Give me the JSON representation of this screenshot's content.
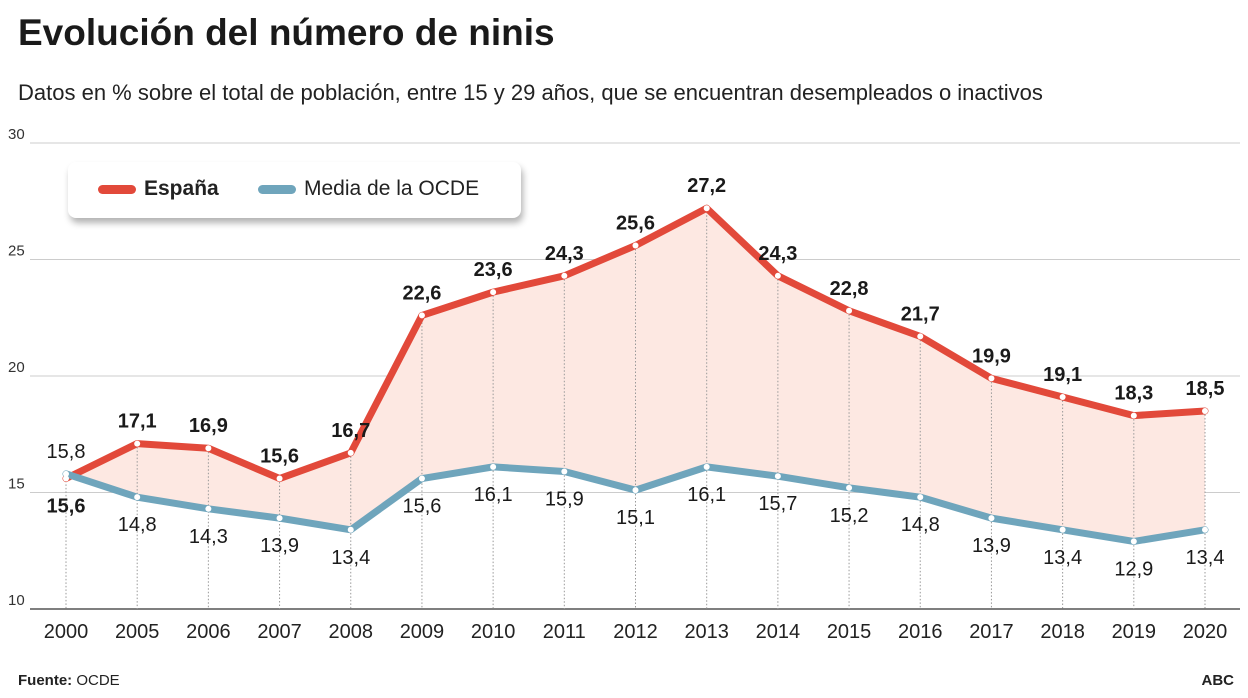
{
  "title": "Evolución del número de ninis",
  "subtitle": "Datos en % sobre el total de población, entre 15 y 29 años, que se encuentran desempleados o inactivos",
  "source_label": "Fuente:",
  "source": "OCDE",
  "brand": "ABC",
  "chart_data": {
    "type": "line",
    "title": "Evolución del número de ninis",
    "categories": [
      "2000",
      "2005",
      "2006",
      "2007",
      "2008",
      "2009",
      "2010",
      "2011",
      "2012",
      "2013",
      "2014",
      "2015",
      "2016",
      "2017",
      "2018",
      "2019",
      "2020"
    ],
    "series": [
      {
        "name": "España",
        "color": "#e2493a",
        "values": [
          15.6,
          17.1,
          16.9,
          15.6,
          16.7,
          22.6,
          23.6,
          24.3,
          25.6,
          27.2,
          24.3,
          22.8,
          21.7,
          19.9,
          19.1,
          18.3,
          18.5
        ],
        "labels": [
          "15,6",
          "17,1",
          "16,9",
          "15,6",
          "16,7",
          "22,6",
          "23,6",
          "24,3",
          "25,6",
          "27,2",
          "24,3",
          "22,8",
          "21,7",
          "19,9",
          "19,1",
          "18,3",
          "18,5"
        ]
      },
      {
        "name": "Media de la OCDE",
        "color": "#6fa5bc",
        "values": [
          15.8,
          14.8,
          14.3,
          13.9,
          13.4,
          15.6,
          16.1,
          15.9,
          15.1,
          16.1,
          15.7,
          15.2,
          14.8,
          13.9,
          13.4,
          12.9,
          13.4
        ],
        "labels": [
          "15,8",
          "14,8",
          "14,3",
          "13,9",
          "13,4",
          "15,6",
          "16,1",
          "15,9",
          "15,1",
          "16,1",
          "15,7",
          "15,2",
          "14,8",
          "13,9",
          "13,4",
          "12,9",
          "13,4"
        ]
      }
    ],
    "yticks": [
      "10",
      "15",
      "20",
      "25",
      "30"
    ],
    "ylim": [
      10,
      30
    ],
    "fill_between_color": "#fde8e2",
    "grid": true,
    "legend": "top-left"
  }
}
